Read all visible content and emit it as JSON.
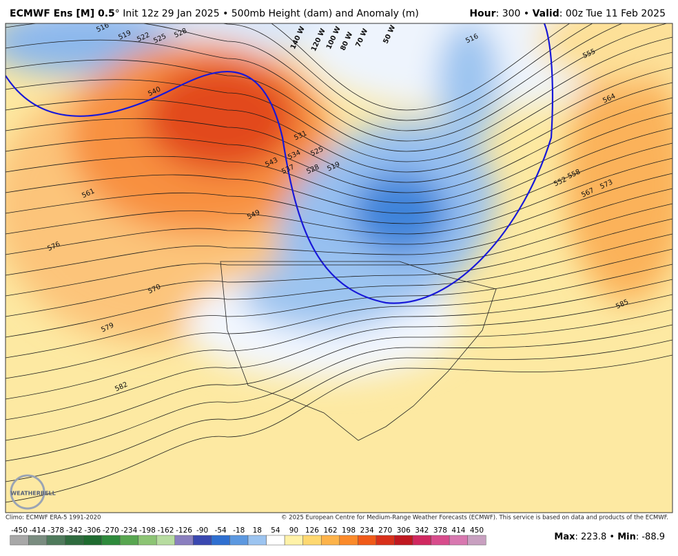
{
  "header": {
    "left": [
      {
        "text": "ECMWF Ens [M] 0.5",
        "bold": true
      },
      {
        "text": "°",
        "bold": false
      },
      {
        "text": " Init 12z 29 Jan 2025 • 500mb Height (dam) and Anomaly (m)",
        "bold": false
      }
    ],
    "right": [
      {
        "text": "Hour",
        "bold": true
      },
      {
        "text": ": 300 • ",
        "bold": false
      },
      {
        "text": "Valid",
        "bold": true
      },
      {
        "text": ": 00z Tue 11 Feb 2025",
        "bold": false
      }
    ]
  },
  "map": {
    "contour_labels": [
      516,
      519,
      522,
      525,
      528,
      540,
      561,
      576,
      570,
      579,
      582,
      585,
      573,
      567,
      558,
      552,
      564,
      555,
      516,
      549,
      543,
      537,
      534,
      531,
      528,
      519,
      525
    ],
    "longitude_labels": [
      "140 W",
      "120 W",
      "100 W",
      "80 W",
      "70 W",
      "50 W"
    ],
    "logo": "WEATHERBELL"
  },
  "footer": {
    "climo": "Climo: ECMWF ERA-5 1991-2020",
    "copyright": "© 2025 European Centre for Medium-Range Weather Forecasts (ECMWF). This service is based on data and products of the ECMWF."
  },
  "colorbar": {
    "ticks": [
      -450,
      -414,
      -378,
      -342,
      -306,
      -270,
      -234,
      -198,
      -162,
      -126,
      -90,
      -54,
      -18,
      18,
      54,
      90,
      126,
      162,
      198,
      234,
      270,
      306,
      342,
      378,
      414,
      450
    ],
    "colors": [
      "#a8a8a8",
      "#7a8c80",
      "#4f7a5c",
      "#2f6b3f",
      "#1f6b30",
      "#2e8a3c",
      "#58a650",
      "#8cc474",
      "#b7dca0",
      "#8a7fbf",
      "#3a48b0",
      "#2f6fd0",
      "#5c98e0",
      "#9cc4f0",
      "#ffffff",
      "#fff2a8",
      "#fed870",
      "#fdb34a",
      "#fb8a2a",
      "#f05a18",
      "#d8301a",
      "#c01820",
      "#d02860",
      "#d84c8c",
      "#d878b0",
      "#c8a0c0"
    ]
  },
  "stats": [
    {
      "text": "Max",
      "bold": true
    },
    {
      "text": ": 223.8 • ",
      "bold": false
    },
    {
      "text": "Min",
      "bold": true
    },
    {
      "text": ": -88.9",
      "bold": false
    }
  ]
}
